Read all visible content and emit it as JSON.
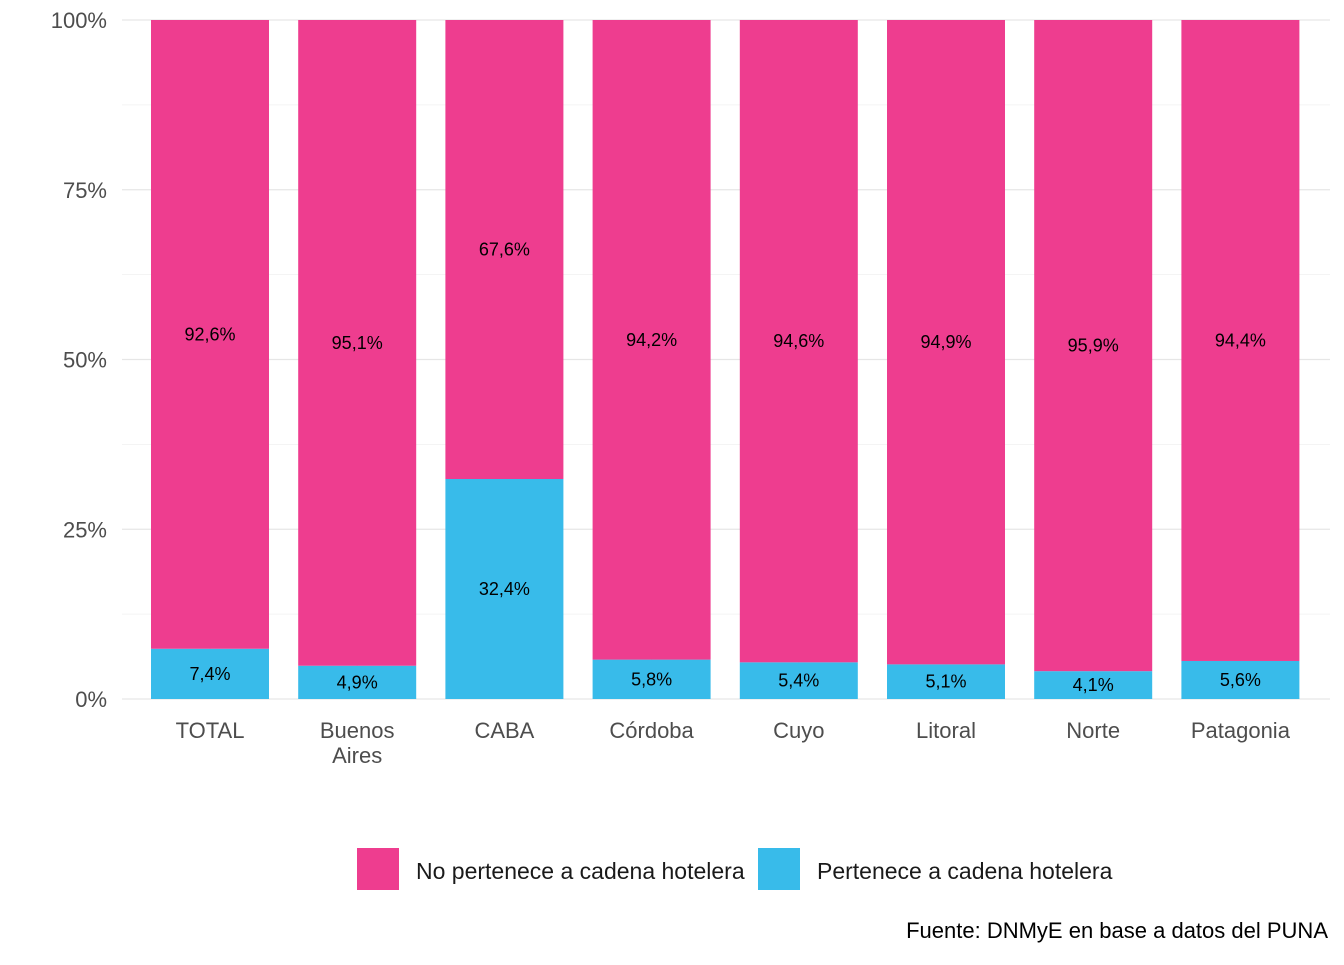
{
  "caption": "Fuente: DNMyE en base a datos del PUNA",
  "chart_data": {
    "type": "bar",
    "stacked": true,
    "categories": [
      "TOTAL",
      "Buenos Aires",
      "CABA",
      "Córdoba",
      "Cuyo",
      "Litoral",
      "Norte",
      "Patagonia"
    ],
    "category_labels": [
      [
        "TOTAL"
      ],
      [
        "Buenos",
        "Aires"
      ],
      [
        "CABA"
      ],
      [
        "Córdoba"
      ],
      [
        "Cuyo"
      ],
      [
        "Litoral"
      ],
      [
        "Norte"
      ],
      [
        "Patagonia"
      ]
    ],
    "series": [
      {
        "name": "Pertenece a cadena hotelera",
        "color": "#38BBEA",
        "values": [
          7.4,
          4.9,
          32.4,
          5.8,
          5.4,
          5.1,
          4.1,
          5.6
        ],
        "labels": [
          "7,4%",
          "4,9%",
          "32,4%",
          "5,8%",
          "5,4%",
          "5,1%",
          "4,1%",
          "5,6%"
        ]
      },
      {
        "name": "No pertenece a cadena hotelera",
        "color": "#EE3D8F",
        "values": [
          92.6,
          95.1,
          67.6,
          94.2,
          94.6,
          94.9,
          95.9,
          94.4
        ],
        "labels": [
          "92,6%",
          "95,1%",
          "67,6%",
          "94,2%",
          "94,6%",
          "94,9%",
          "95,9%",
          "94,4%"
        ]
      }
    ],
    "ylim": [
      0,
      100
    ],
    "yticks": [
      0,
      25,
      50,
      75,
      100
    ],
    "ytick_labels": [
      "0%",
      "25%",
      "50%",
      "75%",
      "100%"
    ],
    "grid": true,
    "legend": {
      "position": "bottom",
      "entries": [
        {
          "label": "No pertenece a cadena hotelera",
          "color": "#EE3D8F"
        },
        {
          "label": "Pertenece a cadena hotelera",
          "color": "#38BBEA"
        }
      ]
    }
  }
}
